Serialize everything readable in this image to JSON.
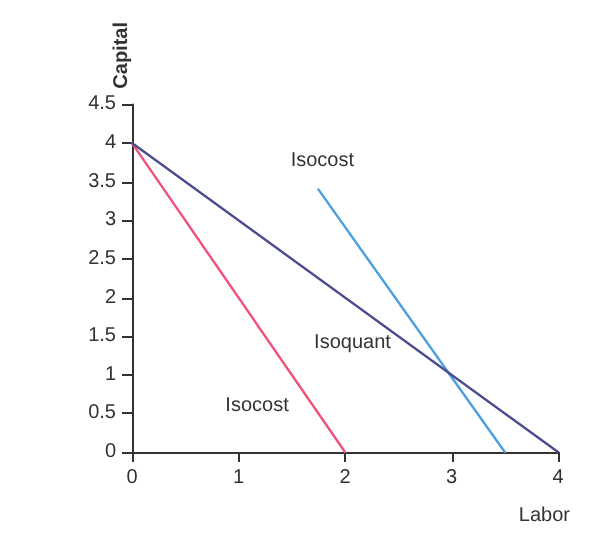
{
  "chart_data": {
    "type": "line",
    "xlabel": "Labor",
    "ylabel": "Capital",
    "xlim": [
      0,
      4
    ],
    "ylim": [
      0,
      4.5
    ],
    "xticks": [
      0,
      1,
      2,
      3,
      4
    ],
    "yticks": [
      0,
      0.5,
      1,
      1.5,
      2,
      2.5,
      3,
      3.5,
      4,
      4.5
    ],
    "series": [
      {
        "name": "Isocost",
        "color": "#f0507a",
        "x": [
          0,
          2
        ],
        "values": [
          4,
          0
        ]
      },
      {
        "name": "Isocost",
        "color": "#4a9fdc",
        "x": [
          1.75,
          3.5
        ],
        "values": [
          3.4,
          0
        ]
      },
      {
        "name": "Isoquant",
        "color": "#4b4b8f",
        "x": [
          0,
          4
        ],
        "values": [
          4,
          0
        ]
      }
    ],
    "grid": false,
    "marker": "none",
    "line_style": "solid"
  }
}
